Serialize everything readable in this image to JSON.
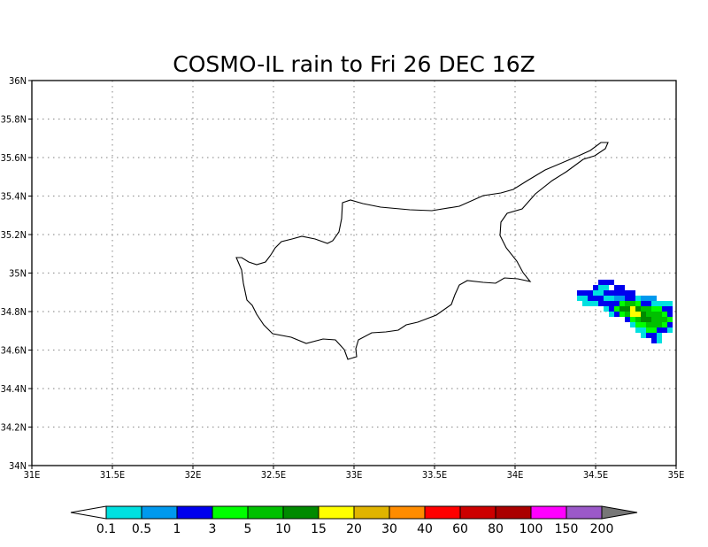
{
  "title": "COSMO-IL rain to Fri 26 DEC 16Z",
  "lat_labels": [
    "36N",
    "35.8N",
    "35.6N",
    "35.4N",
    "35.2N",
    "35N",
    "34.8N",
    "34.6N",
    "34.4N",
    "34.2N",
    "34N"
  ],
  "lon_labels": [
    "31E",
    "31.5E",
    "32E",
    "32.5E",
    "33E",
    "33.5E",
    "34E",
    "34.5E",
    "35E"
  ],
  "colorbar": {
    "labels": [
      "0.1",
      "0.5",
      "1",
      "3",
      "5",
      "10",
      "15",
      "20",
      "30",
      "40",
      "60",
      "80",
      "100",
      "150",
      "200"
    ],
    "colors": [
      "#ffffff",
      "#00e0e0",
      "#0099ee",
      "#0000ee",
      "#00ff00",
      "#00c000",
      "#008a00",
      "#ffff00",
      "#e0b400",
      "#ff8c00",
      "#ff0000",
      "#cc0000",
      "#aa0000",
      "#ff00ff",
      "#9b59c9",
      "#777777"
    ]
  },
  "map": {
    "lon_range": [
      31,
      35
    ],
    "lat_range": [
      34,
      36
    ],
    "coastline_color": "#000000",
    "grid": true
  }
}
